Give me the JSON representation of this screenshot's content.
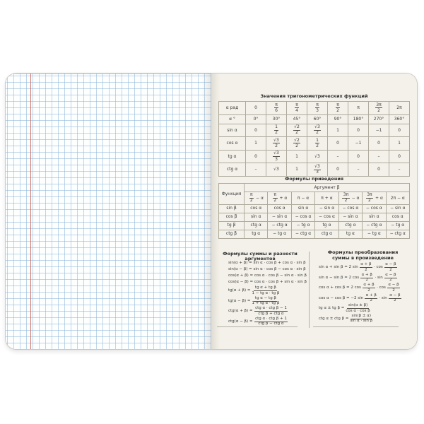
{
  "colors": {
    "page_cream": "#f3f1e9",
    "grid_blue": "#8ab4d8",
    "margin_red": "#c4574d",
    "table_border": "#aeaa9e",
    "text": "#3b3b3b"
  },
  "values_table": {
    "title": "Значения тригонометрических функций",
    "rows": [
      [
        "α рад",
        "0",
        "{π|6}",
        "{π|4}",
        "{π|3}",
        "{π|2}",
        "π",
        "{3π|2}",
        "2π"
      ],
      [
        "α °",
        "0°",
        "30°",
        "45°",
        "60°",
        "90°",
        "180°",
        "270°",
        "360°"
      ],
      [
        "sin α",
        "0",
        "{1|2}",
        "{√2|2}",
        "{√3|2}",
        "1",
        "0",
        "−1",
        "0"
      ],
      [
        "cos α",
        "1",
        "{√3|2}",
        "{√2|2}",
        "{1|2}",
        "0",
        "−1",
        "0",
        "1"
      ],
      [
        "tg α",
        "0",
        "{√3|3}",
        "1",
        "√3",
        "–",
        "0",
        "–",
        "0"
      ],
      [
        "ctg α",
        "–",
        "√3",
        "1",
        "{√3|3}",
        "0",
        "–",
        "0",
        "–"
      ]
    ]
  },
  "reduction_table": {
    "title": "Формулы приведения",
    "func_header": "Функция",
    "arg_header": "Аргумент β",
    "arg_cols": [
      "{π|2} − α",
      "{π|2} + α",
      "π − α",
      "π + α",
      "{3π|2} − α",
      "{3π|2} + α",
      "2π − α"
    ],
    "rows": [
      [
        "sin β",
        "cos α",
        "cos α",
        "sin α",
        "− sin α",
        "− cos α",
        "− cos α",
        "− sin α"
      ],
      [
        "cos β",
        "sin α",
        "− sin α",
        "− cos α",
        "− cos α",
        "− sin α",
        "sin α",
        "cos α"
      ],
      [
        "tg β",
        "ctg α",
        "− ctg α",
        "− tg α",
        "tg α",
        "ctg α",
        "− ctg α",
        "− tg α"
      ],
      [
        "ctg β",
        "tg α",
        "− tg α",
        "− ctg α",
        "ctg α",
        "tg α",
        "− tg α",
        "− ctg α"
      ]
    ]
  },
  "sum_diff_section": {
    "title": "Формулы суммы и разности аргументов",
    "formulas": [
      "sin(α + β) = sin α · cos β + cos α · sin β",
      "sin(α − β) = sin α · cos β − cos α · sin β",
      "cos(α + β) = cos α · cos β − sin α · sin β",
      "cos(α − β) = cos α · cos β + sin α · sin β",
      "tg(α + β) = {tg α + tg β|1 − tg α · tg β}",
      "tg(α − β) = {tg α − tg β|1 + tg α · tg β}",
      "ctg(α + β) = {ctg α · ctg β − 1|ctg β + ctg α}",
      "ctg(α − β) = {ctg α · ctg β + 1|ctg β − ctg α}"
    ]
  },
  "sum_prod_section": {
    "title_line1": "Формулы преобразования",
    "title_line2": "суммы в произведение",
    "formulas": [
      "sin α + sin β = 2 sin {α + β|2} · cos {α − β|2}",
      "sin α − sin β = 2 cos {α + β|2} · sin {α − β|2}",
      "cos α + cos β = 2 cos {α + β|2} · cos {α − β|2}",
      "cos α − cos β = −2 sin {α + β|2} · sin {α − β|2}",
      "tg α ± tg β = {sin(α ± β)|cos α · cos β}",
      "ctg α ± ctg β = {sin(β ± α)|sin α · sin β}"
    ]
  }
}
